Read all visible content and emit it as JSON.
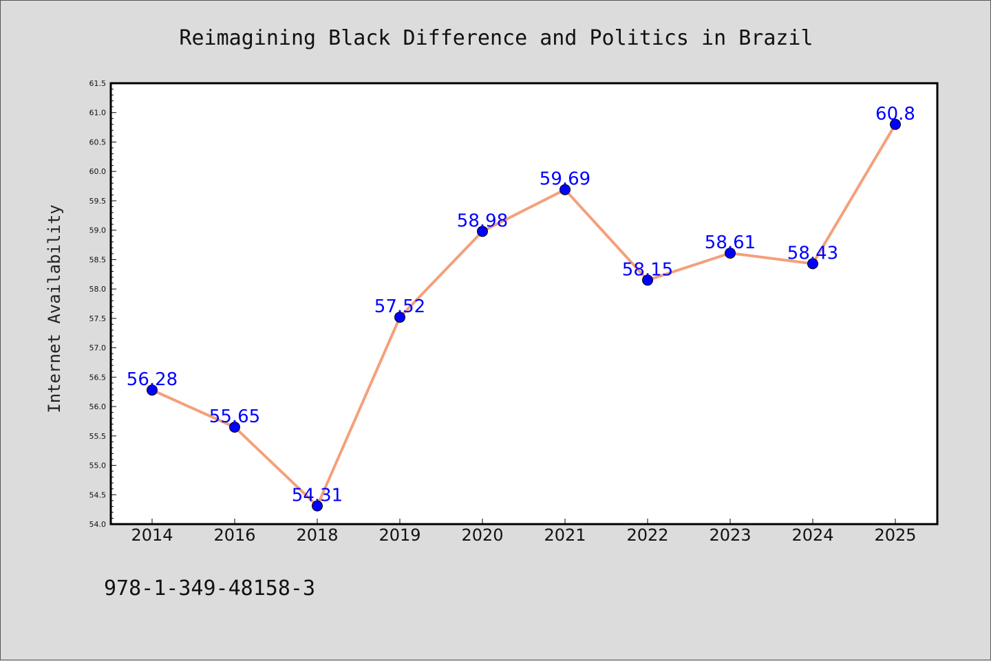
{
  "chart_data": {
    "type": "line",
    "title": "Reimagining Black Difference and Politics in Brazil",
    "xlabel": "",
    "ylabel": "Internet Availability",
    "categories": [
      "2014",
      "2016",
      "2018",
      "2019",
      "2020",
      "2021",
      "2022",
      "2023",
      "2024",
      "2025"
    ],
    "values": [
      56.28,
      55.65,
      54.31,
      57.52,
      58.98,
      59.69,
      58.15,
      58.61,
      58.43,
      60.8
    ],
    "data_labels": [
      "56.28",
      "55.65",
      "54.31",
      "57.52",
      "58.98",
      "59.69",
      "58.15",
      "58.61",
      "58.43",
      "60.8"
    ],
    "ylim": [
      54.0,
      61.5
    ],
    "yticks": [
      "54.0",
      "54.5",
      "55.0",
      "55.5",
      "56.0",
      "56.5",
      "57.0",
      "57.5",
      "58.0",
      "58.5",
      "59.0",
      "59.5",
      "60.0",
      "60.5",
      "61.0",
      "61.5"
    ],
    "line_color": "#f4a07a",
    "marker_color": "#0000ff",
    "label_color": "#0000ff",
    "plot_background": "#ffffff",
    "grid": false,
    "legend": "none"
  },
  "footer_text": "978-1-349-48158-3"
}
